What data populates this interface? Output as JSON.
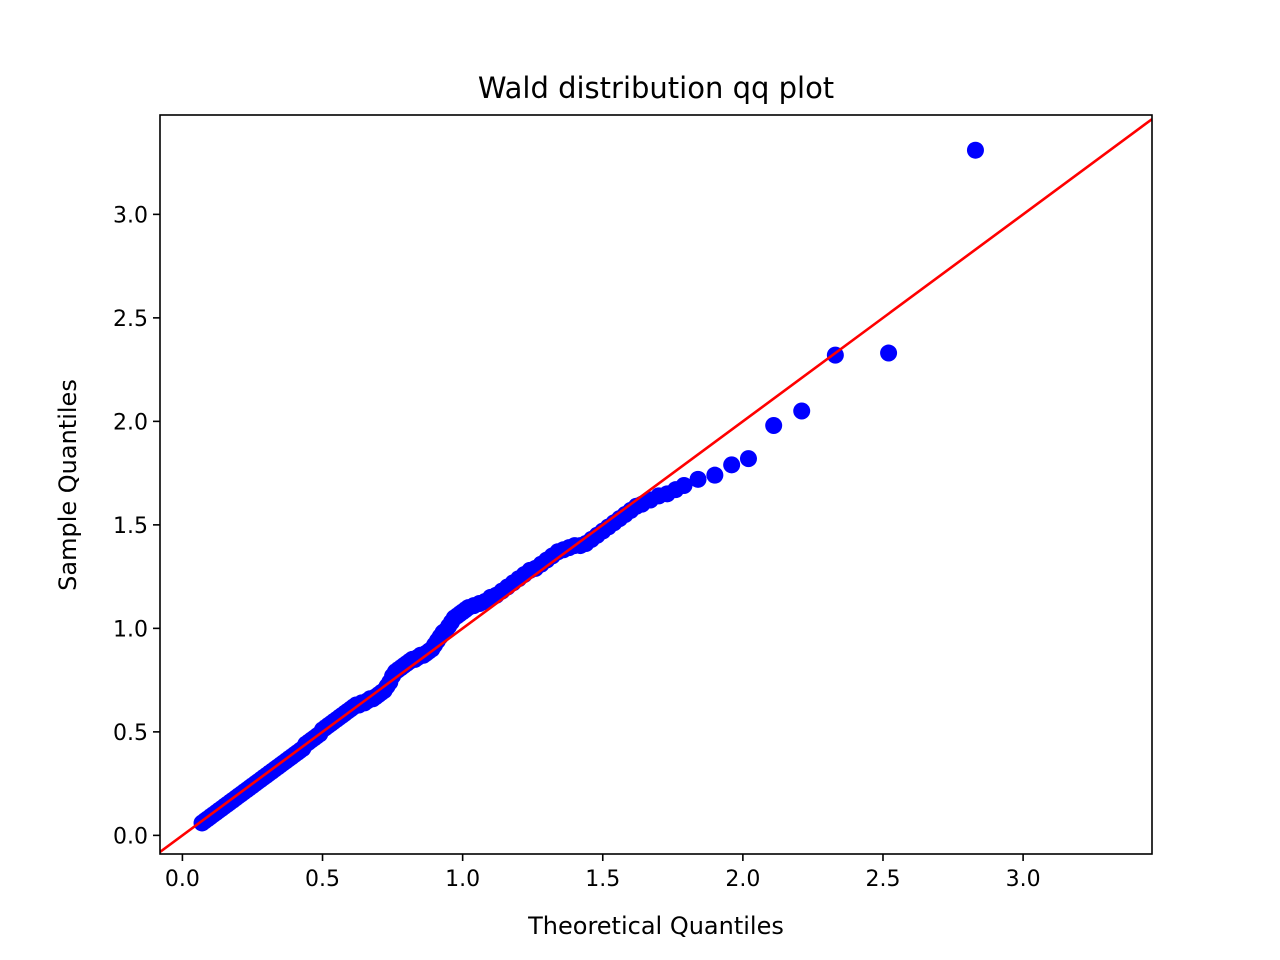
{
  "chart_data": {
    "type": "scatter",
    "title": "Wald distribution qq plot",
    "xlabel": "Theoretical Quantiles",
    "ylabel": "Sample Quantiles",
    "xlim": [
      -0.08,
      3.46
    ],
    "ylim": [
      -0.09,
      3.48
    ],
    "xticks": [
      0.0,
      0.5,
      1.0,
      1.5,
      2.0,
      2.5,
      3.0
    ],
    "yticks": [
      0.0,
      0.5,
      1.0,
      1.5,
      2.0,
      2.5,
      3.0
    ],
    "xtick_labels": [
      "0.0",
      "0.5",
      "1.0",
      "1.5",
      "2.0",
      "2.5",
      "3.0"
    ],
    "ytick_labels": [
      "0.0",
      "0.5",
      "1.0",
      "1.5",
      "2.0",
      "2.5",
      "3.0"
    ],
    "grid": false,
    "marker_color": "#0000ff",
    "line_color": "#ff0000",
    "reference_line": {
      "slope": 1,
      "intercept": 0
    },
    "points": [
      [
        0.07,
        0.06
      ],
      [
        0.08,
        0.07
      ],
      [
        0.09,
        0.08
      ],
      [
        0.1,
        0.09
      ],
      [
        0.11,
        0.1
      ],
      [
        0.12,
        0.11
      ],
      [
        0.13,
        0.12
      ],
      [
        0.14,
        0.13
      ],
      [
        0.15,
        0.14
      ],
      [
        0.16,
        0.15
      ],
      [
        0.17,
        0.16
      ],
      [
        0.18,
        0.17
      ],
      [
        0.19,
        0.18
      ],
      [
        0.2,
        0.19
      ],
      [
        0.21,
        0.2
      ],
      [
        0.22,
        0.21
      ],
      [
        0.23,
        0.22
      ],
      [
        0.24,
        0.23
      ],
      [
        0.25,
        0.24
      ],
      [
        0.26,
        0.25
      ],
      [
        0.27,
        0.26
      ],
      [
        0.28,
        0.27
      ],
      [
        0.29,
        0.28
      ],
      [
        0.3,
        0.29
      ],
      [
        0.31,
        0.3
      ],
      [
        0.32,
        0.31
      ],
      [
        0.33,
        0.32
      ],
      [
        0.34,
        0.33
      ],
      [
        0.35,
        0.34
      ],
      [
        0.36,
        0.35
      ],
      [
        0.37,
        0.36
      ],
      [
        0.38,
        0.37
      ],
      [
        0.39,
        0.38
      ],
      [
        0.4,
        0.39
      ],
      [
        0.41,
        0.4
      ],
      [
        0.42,
        0.41
      ],
      [
        0.43,
        0.42
      ],
      [
        0.44,
        0.44
      ],
      [
        0.45,
        0.45
      ],
      [
        0.46,
        0.46
      ],
      [
        0.47,
        0.47
      ],
      [
        0.48,
        0.48
      ],
      [
        0.49,
        0.49
      ],
      [
        0.5,
        0.51
      ],
      [
        0.51,
        0.52
      ],
      [
        0.52,
        0.53
      ],
      [
        0.53,
        0.54
      ],
      [
        0.54,
        0.55
      ],
      [
        0.55,
        0.56
      ],
      [
        0.56,
        0.57
      ],
      [
        0.57,
        0.58
      ],
      [
        0.58,
        0.59
      ],
      [
        0.59,
        0.6
      ],
      [
        0.6,
        0.61
      ],
      [
        0.61,
        0.62
      ],
      [
        0.62,
        0.63
      ],
      [
        0.63,
        0.63
      ],
      [
        0.64,
        0.64
      ],
      [
        0.65,
        0.64
      ],
      [
        0.66,
        0.65
      ],
      [
        0.67,
        0.66
      ],
      [
        0.68,
        0.66
      ],
      [
        0.69,
        0.67
      ],
      [
        0.7,
        0.68
      ],
      [
        0.71,
        0.69
      ],
      [
        0.72,
        0.7
      ],
      [
        0.73,
        0.72
      ],
      [
        0.74,
        0.74
      ],
      [
        0.75,
        0.77
      ],
      [
        0.76,
        0.79
      ],
      [
        0.77,
        0.8
      ],
      [
        0.78,
        0.81
      ],
      [
        0.79,
        0.82
      ],
      [
        0.8,
        0.83
      ],
      [
        0.81,
        0.84
      ],
      [
        0.82,
        0.85
      ],
      [
        0.83,
        0.85
      ],
      [
        0.84,
        0.86
      ],
      [
        0.85,
        0.87
      ],
      [
        0.86,
        0.87
      ],
      [
        0.87,
        0.88
      ],
      [
        0.88,
        0.89
      ],
      [
        0.89,
        0.9
      ],
      [
        0.9,
        0.92
      ],
      [
        0.91,
        0.94
      ],
      [
        0.92,
        0.96
      ],
      [
        0.93,
        0.98
      ],
      [
        0.94,
        0.99
      ],
      [
        0.95,
        1.01
      ],
      [
        0.96,
        1.03
      ],
      [
        0.97,
        1.05
      ],
      [
        0.98,
        1.06
      ],
      [
        0.99,
        1.07
      ],
      [
        1.0,
        1.08
      ],
      [
        1.01,
        1.09
      ],
      [
        1.02,
        1.1
      ],
      [
        1.04,
        1.11
      ],
      [
        1.06,
        1.12
      ],
      [
        1.08,
        1.13
      ],
      [
        1.1,
        1.15
      ],
      [
        1.12,
        1.16
      ],
      [
        1.14,
        1.18
      ],
      [
        1.16,
        1.2
      ],
      [
        1.18,
        1.22
      ],
      [
        1.2,
        1.24
      ],
      [
        1.22,
        1.26
      ],
      [
        1.24,
        1.28
      ],
      [
        1.26,
        1.29
      ],
      [
        1.28,
        1.31
      ],
      [
        1.3,
        1.33
      ],
      [
        1.32,
        1.35
      ],
      [
        1.34,
        1.37
      ],
      [
        1.36,
        1.38
      ],
      [
        1.38,
        1.39
      ],
      [
        1.4,
        1.4
      ],
      [
        1.42,
        1.4
      ],
      [
        1.44,
        1.41
      ],
      [
        1.46,
        1.43
      ],
      [
        1.48,
        1.45
      ],
      [
        1.5,
        1.47
      ],
      [
        1.52,
        1.49
      ],
      [
        1.54,
        1.51
      ],
      [
        1.56,
        1.53
      ],
      [
        1.58,
        1.55
      ],
      [
        1.6,
        1.57
      ],
      [
        1.62,
        1.59
      ],
      [
        1.64,
        1.6
      ],
      [
        1.67,
        1.62
      ],
      [
        1.7,
        1.64
      ],
      [
        1.73,
        1.65
      ],
      [
        1.76,
        1.67
      ],
      [
        1.79,
        1.69
      ],
      [
        1.84,
        1.72
      ],
      [
        1.9,
        1.74
      ],
      [
        1.96,
        1.79
      ],
      [
        2.02,
        1.82
      ],
      [
        2.11,
        1.98
      ],
      [
        2.21,
        2.05
      ],
      [
        2.33,
        2.32
      ],
      [
        2.52,
        2.33
      ],
      [
        2.83,
        3.31
      ]
    ]
  }
}
